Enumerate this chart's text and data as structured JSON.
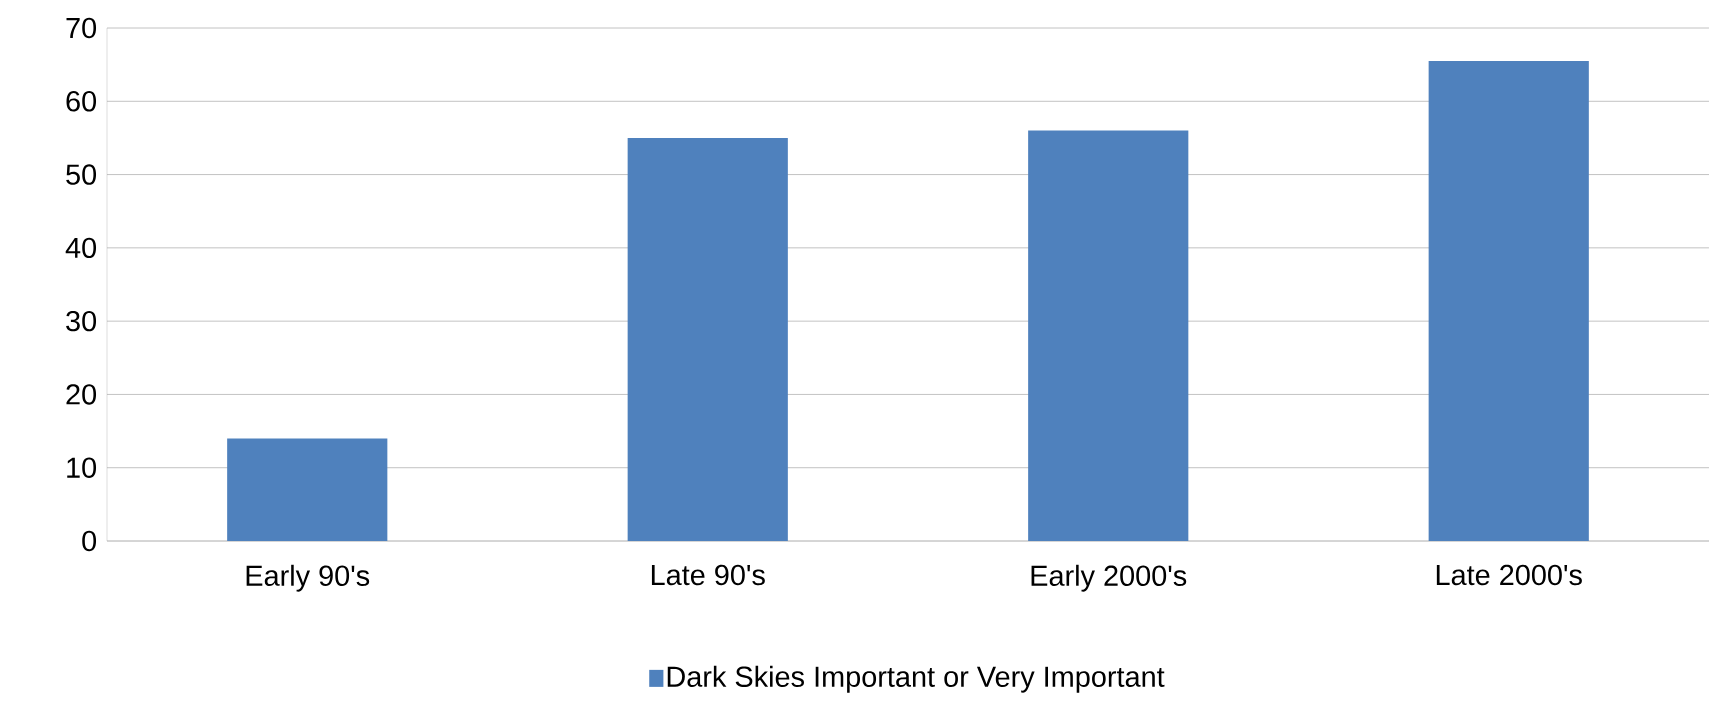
{
  "chart_data": {
    "type": "bar",
    "categories": [
      "Early 90's",
      "Late 90's",
      "Early 2000's",
      "Late 2000's"
    ],
    "series": [
      {
        "name": "Dark Skies Important or Very Important",
        "color": "#4f81bd",
        "values": [
          14,
          55,
          56,
          65.5
        ]
      }
    ],
    "ylim": [
      0,
      70
    ],
    "yticks": [
      0,
      10,
      20,
      30,
      40,
      50,
      60,
      70
    ],
    "grid": "y",
    "legend": "bottom"
  }
}
